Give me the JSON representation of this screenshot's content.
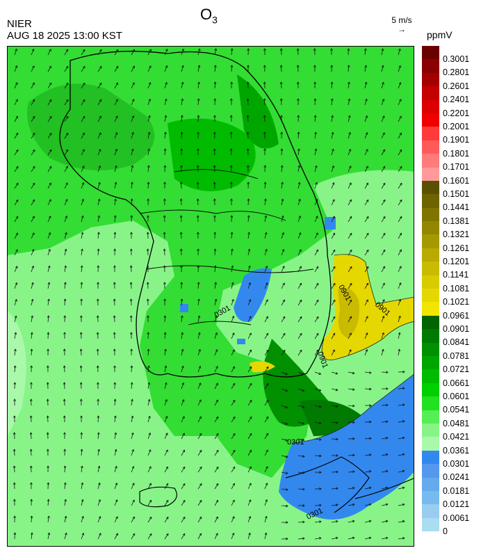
{
  "header": {
    "agency": "NIER",
    "timestamp": "AUG 18 2025 13:00 KST",
    "species": "O",
    "species_sub": "3"
  },
  "wind_reference": {
    "label": "5 m/s",
    "arrow": "→"
  },
  "colorbar": {
    "unit": "ppmV",
    "labels": [
      "0.3001",
      "0.2801",
      "0.2601",
      "0.2401",
      "0.2201",
      "0.2001",
      "0.1901",
      "0.1801",
      "0.1701",
      "0.1601",
      "0.1501",
      "0.1441",
      "0.1381",
      "0.1321",
      "0.1261",
      "0.1201",
      "0.1141",
      "0.1081",
      "0.1021",
      "0.0961",
      "0.0901",
      "0.0841",
      "0.0781",
      "0.0721",
      "0.0661",
      "0.0601",
      "0.0541",
      "0.0481",
      "0.0421",
      "0.0361",
      "0.0301",
      "0.0241",
      "0.0181",
      "0.0121",
      "0.0061",
      "0"
    ],
    "colors": [
      "#6b0000",
      "#8a0000",
      "#a50000",
      "#c40000",
      "#dd0000",
      "#f00000",
      "#ff3a3a",
      "#ff5a5a",
      "#ff7a7a",
      "#ff9a9a",
      "#5a5000",
      "#6d6300",
      "#7f7400",
      "#938700",
      "#a59900",
      "#b8aa00",
      "#c9bb00",
      "#d8cb00",
      "#e5d800",
      "#f2e500",
      "#006400",
      "#007a00",
      "#009000",
      "#00a600",
      "#00bb00",
      "#00cf00",
      "#22e022",
      "#55ee55",
      "#88f488",
      "#aaf8aa",
      "#3388ee",
      "#5599ee",
      "#66aaee",
      "#77bbee",
      "#99ccee",
      "#aaddf0"
    ]
  },
  "map": {
    "contour_labels": [
      "0901",
      "0301",
      "0901",
      "0901",
      "0301",
      "0301"
    ],
    "concentration_levels_ppmv": [
      0.0301,
      0.0361,
      0.0421,
      0.0481,
      0.0541,
      0.0601,
      0.0661,
      0.0901
    ]
  }
}
